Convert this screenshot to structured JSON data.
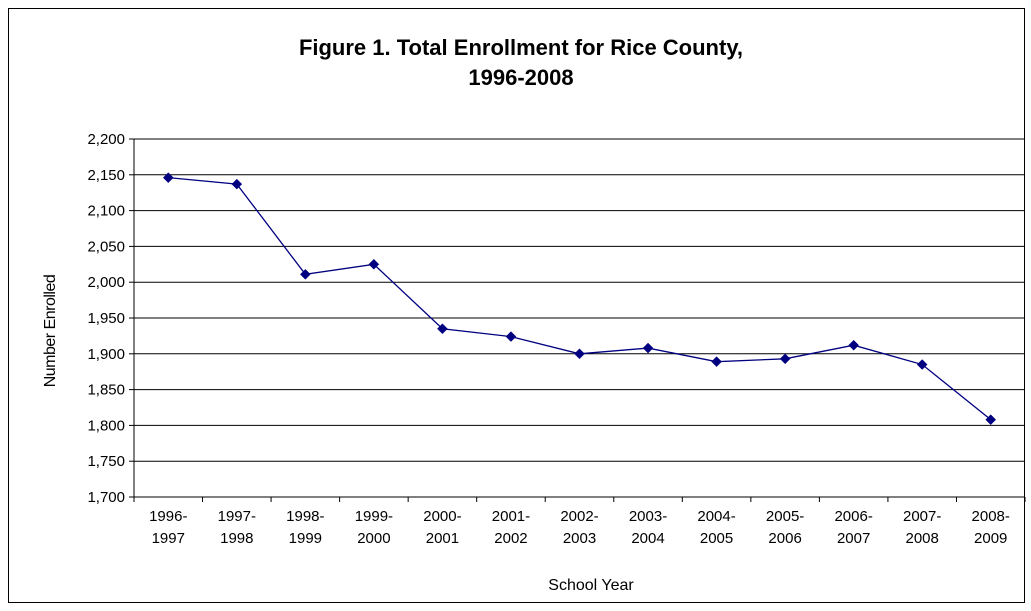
{
  "chart_data": {
    "type": "line",
    "title_lines": [
      "Figure 1. Total Enrollment for Rice County,",
      "1996-2008"
    ],
    "xlabel": "School Year",
    "ylabel": "Number Enrolled",
    "categories": [
      [
        "1996-",
        "1997"
      ],
      [
        "1997-",
        "1998"
      ],
      [
        "1998-",
        "1999"
      ],
      [
        "1999-",
        "2000"
      ],
      [
        "2000-",
        "2001"
      ],
      [
        "2001-",
        "2002"
      ],
      [
        "2002-",
        "2003"
      ],
      [
        "2003-",
        "2004"
      ],
      [
        "2004-",
        "2005"
      ],
      [
        "2005-",
        "2006"
      ],
      [
        "2006-",
        "2007"
      ],
      [
        "2007-",
        "2008"
      ],
      [
        "2008-",
        "2009"
      ]
    ],
    "series": [
      {
        "values": [
          2146,
          2137,
          2011,
          2025,
          1935,
          1924,
          1900,
          1908,
          1889,
          1893,
          1912,
          1885,
          1808
        ]
      }
    ],
    "ylim": [
      1700,
      2200
    ],
    "ytick_step": 50,
    "ytick_labels": [
      "1,700",
      "1,750",
      "1,800",
      "1,850",
      "1,900",
      "1,950",
      "2,000",
      "2,050",
      "2,100",
      "2,150",
      "2,200"
    ],
    "grid": true,
    "legend": "none",
    "colors": {
      "line": "#000080",
      "marker": "#000080",
      "grid": "#000000"
    }
  }
}
